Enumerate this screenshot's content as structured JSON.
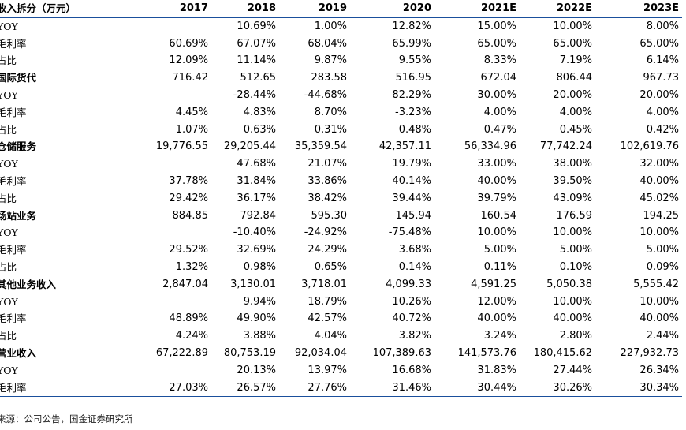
{
  "table": {
    "header": [
      "收入拆分（万元）",
      "2017",
      "2018",
      "2019",
      "2020",
      "2021E",
      "2022E",
      "2023E"
    ],
    "rows": [
      {
        "section": false,
        "cells": [
          "YOY",
          "",
          "10.69%",
          "1.00%",
          "12.82%",
          "15.00%",
          "10.00%",
          "8.00%"
        ]
      },
      {
        "section": false,
        "cells": [
          "毛利率",
          "60.69%",
          "67.07%",
          "68.04%",
          "65.99%",
          "65.00%",
          "65.00%",
          "65.00%"
        ]
      },
      {
        "section": false,
        "cells": [
          "占比",
          "12.09%",
          "11.14%",
          "9.87%",
          "9.55%",
          "8.33%",
          "7.19%",
          "6.14%"
        ]
      },
      {
        "section": true,
        "cells": [
          "国际货代",
          "716.42",
          "512.65",
          "283.58",
          "516.95",
          "672.04",
          "806.44",
          "967.73"
        ]
      },
      {
        "section": false,
        "cells": [
          "YOY",
          "",
          "-28.44%",
          "-44.68%",
          "82.29%",
          "30.00%",
          "20.00%",
          "20.00%"
        ]
      },
      {
        "section": false,
        "cells": [
          "毛利率",
          "4.45%",
          "4.83%",
          "8.70%",
          "-3.23%",
          "4.00%",
          "4.00%",
          "4.00%"
        ]
      },
      {
        "section": false,
        "cells": [
          "占比",
          "1.07%",
          "0.63%",
          "0.31%",
          "0.48%",
          "0.47%",
          "0.45%",
          "0.42%"
        ]
      },
      {
        "section": true,
        "cells": [
          "仓储服务",
          "19,776.55",
          "29,205.44",
          "35,359.54",
          "42,357.11",
          "56,334.96",
          "77,742.24",
          "102,619.76"
        ]
      },
      {
        "section": false,
        "cells": [
          "YOY",
          "",
          "47.68%",
          "21.07%",
          "19.79%",
          "33.00%",
          "38.00%",
          "32.00%"
        ]
      },
      {
        "section": false,
        "cells": [
          "毛利率",
          "37.78%",
          "31.84%",
          "33.86%",
          "40.14%",
          "40.00%",
          "39.50%",
          "40.00%"
        ]
      },
      {
        "section": false,
        "cells": [
          "占比",
          "29.42%",
          "36.17%",
          "38.42%",
          "39.44%",
          "39.79%",
          "43.09%",
          "45.02%"
        ]
      },
      {
        "section": true,
        "cells": [
          "场站业务",
          "884.85",
          "792.84",
          "595.30",
          "145.94",
          "160.54",
          "176.59",
          "194.25"
        ]
      },
      {
        "section": false,
        "cells": [
          "YOY",
          "",
          "-10.40%",
          "-24.92%",
          "-75.48%",
          "10.00%",
          "10.00%",
          "10.00%"
        ]
      },
      {
        "section": false,
        "cells": [
          "毛利率",
          "29.52%",
          "32.69%",
          "24.29%",
          "3.68%",
          "5.00%",
          "5.00%",
          "5.00%"
        ]
      },
      {
        "section": false,
        "cells": [
          "占比",
          "1.32%",
          "0.98%",
          "0.65%",
          "0.14%",
          "0.11%",
          "0.10%",
          "0.09%"
        ]
      },
      {
        "section": true,
        "cells": [
          "其他业务收入",
          "2,847.04",
          "3,130.01",
          "3,718.01",
          "4,099.33",
          "4,591.25",
          "5,050.38",
          "5,555.42"
        ]
      },
      {
        "section": false,
        "cells": [
          "YOY",
          "",
          "9.94%",
          "18.79%",
          "10.26%",
          "12.00%",
          "10.00%",
          "10.00%"
        ]
      },
      {
        "section": false,
        "cells": [
          "毛利率",
          "48.89%",
          "49.90%",
          "42.57%",
          "40.72%",
          "40.00%",
          "40.00%",
          "40.00%"
        ]
      },
      {
        "section": false,
        "cells": [
          "占比",
          "4.24%",
          "3.88%",
          "4.04%",
          "3.82%",
          "3.24%",
          "2.80%",
          "2.44%"
        ]
      },
      {
        "section": true,
        "cells": [
          "营业收入",
          "67,222.89",
          "80,753.19",
          "92,034.04",
          "107,389.63",
          "141,573.76",
          "180,415.62",
          "227,932.73"
        ]
      },
      {
        "section": false,
        "cells": [
          "YOY",
          "",
          "20.13%",
          "13.97%",
          "16.68%",
          "31.83%",
          "27.44%",
          "26.34%"
        ]
      },
      {
        "section": false,
        "cells": [
          "毛利率",
          "27.03%",
          "26.57%",
          "27.76%",
          "31.46%",
          "30.44%",
          "30.26%",
          "30.34%"
        ]
      }
    ]
  },
  "source": "来源：公司公告，国金证券研究所"
}
